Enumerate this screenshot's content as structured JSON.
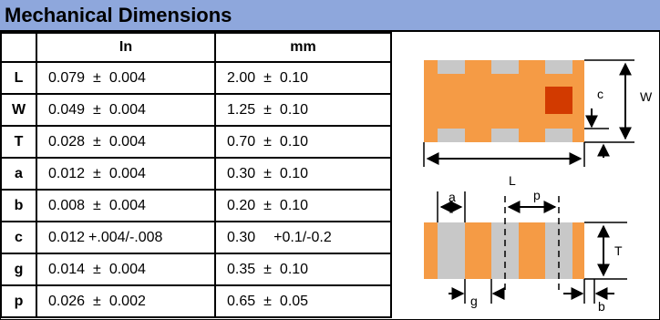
{
  "title": "Mechanical Dimensions",
  "headers": {
    "in": "In",
    "mm": "mm"
  },
  "rows": [
    {
      "label": "L",
      "in_val": "0.079",
      "in_pm": "±",
      "in_tol": "0.004",
      "mm_val": "2.00",
      "mm_pm": "±",
      "mm_tol": "0.10"
    },
    {
      "label": "W",
      "in_val": "0.049",
      "in_pm": "±",
      "in_tol": "0.004",
      "mm_val": "1.25",
      "mm_pm": "±",
      "mm_tol": "0.10"
    },
    {
      "label": "T",
      "in_val": "0.028",
      "in_pm": "±",
      "in_tol": "0.004",
      "mm_val": "0.70",
      "mm_pm": "±",
      "mm_tol": "0.10"
    },
    {
      "label": "a",
      "in_val": "0.012",
      "in_pm": "±",
      "in_tol": "0.004",
      "mm_val": "0.30",
      "mm_pm": "±",
      "mm_tol": "0.10"
    },
    {
      "label": "b",
      "in_val": "0.008",
      "in_pm": "±",
      "in_tol": "0.004",
      "mm_val": "0.20",
      "mm_pm": "±",
      "mm_tol": "0.10"
    },
    {
      "label": "c",
      "in_val": "0.012",
      "in_pm": "",
      "in_tol": "+.004/-.008",
      "mm_val": "0.30",
      "mm_pm": "",
      "mm_tol": "+0.1/-0.2"
    },
    {
      "label": "g",
      "in_val": "0.014",
      "in_pm": "±",
      "in_tol": "0.004",
      "mm_val": "0.35",
      "mm_pm": "±",
      "mm_tol": "0.10"
    },
    {
      "label": "p",
      "in_val": "0.026",
      "in_pm": "±",
      "in_tol": "0.002",
      "mm_val": "0.65",
      "mm_pm": "±",
      "mm_tol": "0.05"
    }
  ],
  "drawing_labels": {
    "c": "c",
    "W": "W",
    "L": "L",
    "a": "a",
    "p": "p",
    "T": "T",
    "g": "g",
    "b": "b"
  },
  "colors": {
    "header_bg": "#8ea7dc",
    "body_orange": "#f59b45",
    "terminal_gray": "#c8c8c8",
    "marker_red": "#d23a00"
  }
}
